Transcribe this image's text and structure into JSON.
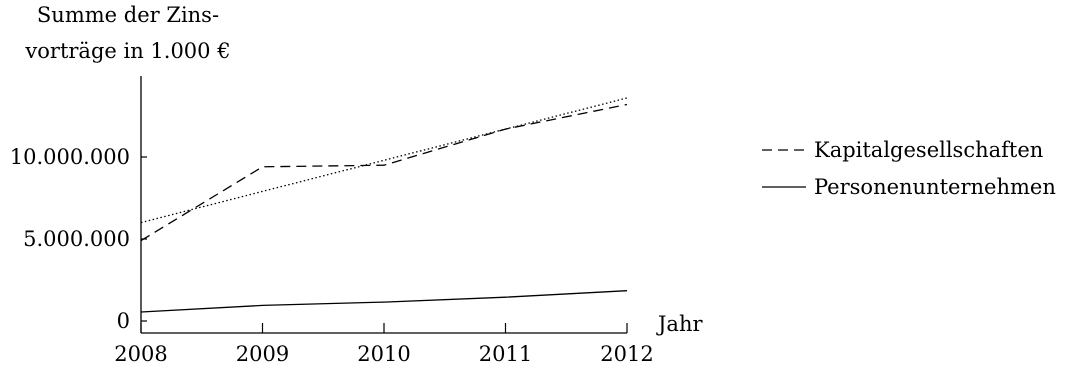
{
  "chart_data": {
    "type": "line",
    "ylabel_lines": [
      "Summe der Zins-",
      "vorträge in 1.000 €"
    ],
    "xlabel": "Jahr",
    "x": [
      2008,
      2009,
      2010,
      2011,
      2012
    ],
    "xticks": [
      "2008",
      "2009",
      "2010",
      "2011",
      "2012"
    ],
    "yticks": [
      {
        "value": 0,
        "label": "0"
      },
      {
        "value": 5000000,
        "label": "5.000.000"
      },
      {
        "value": 10000000,
        "label": "10.000.000"
      }
    ],
    "ylim": [
      0,
      14000000
    ],
    "grid": false,
    "legend_position": "right",
    "series": [
      {
        "name": "Kapitalgesellschaften",
        "style": "dashed",
        "color": "#000000",
        "values": [
          4900000,
          9400000,
          9500000,
          11700000,
          13200000
        ]
      },
      {
        "name": "Personenunternehmen",
        "style": "solid",
        "color": "#000000",
        "values": [
          550000,
          950000,
          1150000,
          1450000,
          1850000
        ]
      },
      {
        "style": "dotted",
        "color": "#000000",
        "values": [
          6000000,
          7900000,
          9800000,
          11700000,
          13600000
        ]
      }
    ]
  }
}
